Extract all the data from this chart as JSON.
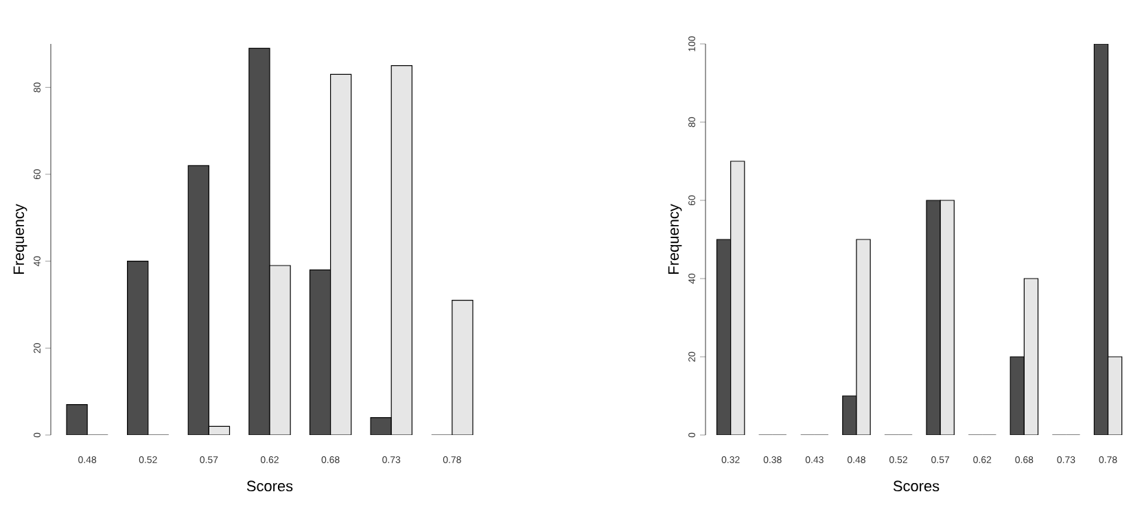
{
  "chart_data": [
    {
      "type": "bar",
      "xlabel": "Scores",
      "ylabel": "Frequency",
      "categories": [
        "0.48",
        "0.52",
        "0.57",
        "0.62",
        "0.68",
        "0.73",
        "0.78"
      ],
      "ylim": [
        0,
        90
      ],
      "yticks": [
        0,
        20,
        40,
        60,
        80
      ],
      "series": [
        {
          "color": "#4d4d4d",
          "values": [
            7,
            40,
            62,
            89,
            38,
            4,
            0
          ]
        },
        {
          "color": "#e6e6e6",
          "values": [
            0,
            0,
            2,
            39,
            83,
            85,
            31
          ]
        }
      ]
    },
    {
      "type": "bar",
      "xlabel": "Scores",
      "ylabel": "Frequency",
      "categories": [
        "0.32",
        "0.38",
        "0.43",
        "0.48",
        "0.52",
        "0.57",
        "0.62",
        "0.68",
        "0.73",
        "0.78"
      ],
      "ylim": [
        0,
        100
      ],
      "yticks": [
        0,
        20,
        40,
        60,
        80,
        100
      ],
      "series": [
        {
          "color": "#4d4d4d",
          "values": [
            50,
            0,
            0,
            10,
            0,
            60,
            0,
            20,
            0,
            100
          ]
        },
        {
          "color": "#e6e6e6",
          "values": [
            70,
            0,
            0,
            50,
            0,
            60,
            0,
            40,
            0,
            20
          ]
        }
      ]
    }
  ]
}
